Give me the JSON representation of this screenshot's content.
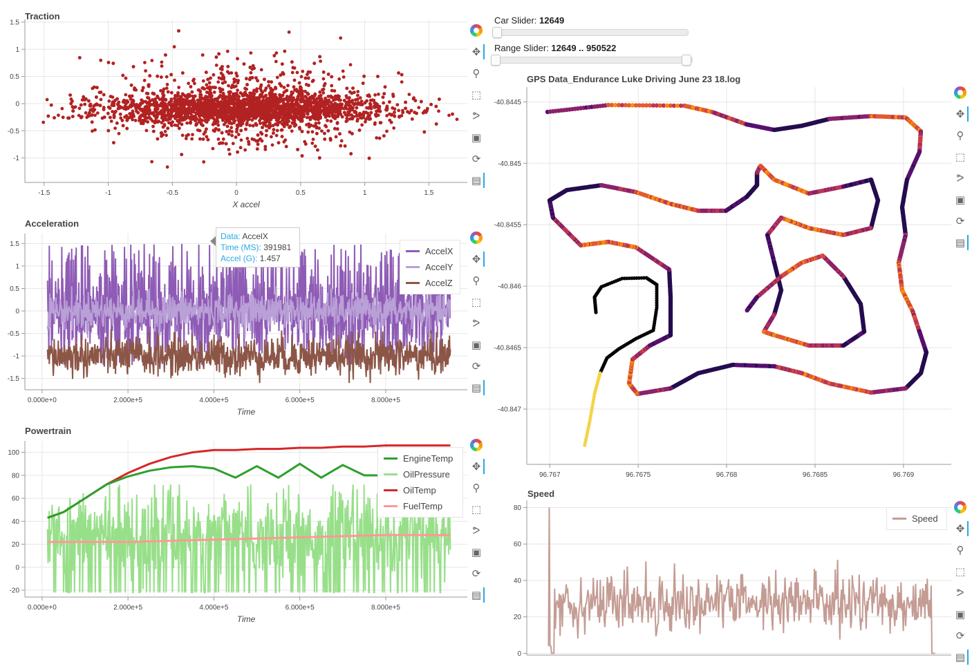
{
  "charts": {
    "traction": {
      "title": "Traction"
    },
    "accel": {
      "title": "Acceleration"
    },
    "power": {
      "title": "Powertrain"
    },
    "gps": {
      "title": "GPS Data_Endurance Luke Driving June 23 18.log"
    },
    "speed": {
      "title": "Speed"
    }
  },
  "sliders": {
    "car": {
      "label": "Car Slider:",
      "value": "12649",
      "fraction": 0.0
    },
    "range": {
      "label": "Range Slider:",
      "value": "12649 .. 950522",
      "start_fraction": 0.0,
      "end_fraction": 1.0
    }
  },
  "tooltip": {
    "data_key": "Data:",
    "data_val": "AccelX",
    "time_key": "Time (MS):",
    "time_val": "391981",
    "accel_key": "Accel (G):",
    "accel_val": "1.457"
  },
  "legends": {
    "accel": [
      {
        "name": "AccelX",
        "color": "#8e5bb5"
      },
      {
        "name": "AccelY",
        "color": "#b9a0d6"
      },
      {
        "name": "AccelZ",
        "color": "#8c5647"
      }
    ],
    "power": [
      {
        "name": "EngineTemp",
        "color": "#2ca02c"
      },
      {
        "name": "OilPressure",
        "color": "#98df8a"
      },
      {
        "name": "OilTemp",
        "color": "#d62728"
      },
      {
        "name": "FuelTemp",
        "color": "#ff9896"
      }
    ],
    "speed": [
      {
        "name": "Speed",
        "color": "#c49c94"
      }
    ]
  },
  "toolbar_icons": [
    "bokeh-logo-icon",
    "pan-icon",
    "wheel-zoom-icon",
    "box-select-icon",
    "lasso-select-icon",
    "save-icon",
    "reset-icon",
    "hover-icon"
  ],
  "chart_data": [
    {
      "type": "scatter",
      "title": "Traction",
      "xlabel": "X accel",
      "ylabel": "",
      "xlim": [
        -1.65,
        1.8
      ],
      "ylim": [
        -1.45,
        1.55
      ],
      "xticks": [
        "-1.5",
        "-1",
        "-0.5",
        "0",
        "0.5",
        "1",
        "1.5"
      ],
      "xtick_values": [
        -1.5,
        -1,
        -0.5,
        0,
        0.5,
        1,
        1.5
      ],
      "yticks": [
        "1.5",
        "1",
        "0.5",
        "0",
        "-0.5",
        "-1"
      ],
      "ytick_values": [
        1.5,
        1,
        0.5,
        0,
        -0.5,
        -1
      ],
      "color": "#b22222",
      "series": [
        {
          "name": "",
          "x_range": [
            -1.55,
            1.75
          ],
          "y_range": [
            -1.35,
            1.4
          ]
        }
      ]
    },
    {
      "type": "line",
      "title": "Acceleration",
      "xlabel": "Time",
      "ylabel": "",
      "xlim": [
        -40000,
        990000
      ],
      "ylim": [
        -1.75,
        1.72
      ],
      "xticks": [
        "0.000e+0",
        "2.000e+5",
        "4.000e+5",
        "6.000e+5",
        "8.000e+5"
      ],
      "xtick_values": [
        0,
        200000,
        400000,
        600000,
        800000
      ],
      "yticks": [
        "1.5",
        "1",
        "0.5",
        "0",
        "-0.5",
        "-1",
        "-1.5"
      ],
      "ytick_values": [
        1.5,
        1,
        0.5,
        0,
        -0.5,
        -1,
        -1.5
      ],
      "series": [
        {
          "name": "AccelX",
          "color": "#8e5bb5",
          "x_range": [
            12649,
            950522
          ],
          "mean": 0.0,
          "min": -1.45,
          "max": 1.6
        },
        {
          "name": "AccelY",
          "color": "#b9a0d6",
          "x_range": [
            12649,
            950522
          ],
          "mean": 0.0,
          "min": -0.6,
          "max": 0.55
        },
        {
          "name": "AccelZ",
          "color": "#8c5647",
          "x_range": [
            12649,
            950522
          ],
          "mean": -1.0,
          "min": -1.6,
          "max": -0.4
        }
      ]
    },
    {
      "type": "line",
      "title": "Powertrain",
      "xlabel": "Time",
      "ylabel": "",
      "xlim": [
        -40000,
        990000
      ],
      "ylim": [
        -26,
        110
      ],
      "xticks": [
        "0.000e+0",
        "2.000e+5",
        "4.000e+5",
        "6.000e+5",
        "8.000e+5"
      ],
      "xtick_values": [
        0,
        200000,
        400000,
        600000,
        800000
      ],
      "yticks": [
        "100",
        "80",
        "60",
        "40",
        "20",
        "0",
        "-20"
      ],
      "ytick_values": [
        100,
        80,
        60,
        40,
        20,
        0,
        -20
      ],
      "series": [
        {
          "name": "EngineTemp",
          "color": "#2ca02c",
          "x": [
            12649,
            50000,
            100000,
            150000,
            200000,
            250000,
            300000,
            350000,
            400000,
            450000,
            500000,
            550000,
            600000,
            650000,
            700000,
            750000,
            800000,
            850000
          ],
          "y": [
            43,
            48,
            60,
            72,
            79,
            84,
            87,
            88,
            86,
            78,
            88,
            78,
            90,
            78,
            89,
            80,
            80,
            80
          ]
        },
        {
          "name": "OilPressure",
          "color": "#98df8a",
          "x_range": [
            12649,
            950522
          ],
          "min": -25,
          "max": 72
        },
        {
          "name": "OilTemp",
          "color": "#d62728",
          "x": [
            12649,
            50000,
            100000,
            150000,
            200000,
            250000,
            300000,
            350000,
            400000,
            450000,
            500000,
            550000,
            600000,
            650000,
            700000,
            750000,
            800000,
            850000,
            950522
          ],
          "y": [
            43,
            48,
            60,
            72,
            82,
            90,
            96,
            100,
            102,
            102,
            103,
            103,
            104,
            104,
            105,
            105,
            106,
            106,
            106
          ]
        },
        {
          "name": "FuelTemp",
          "color": "#ff9896",
          "x": [
            12649,
            200000,
            400000,
            600000,
            800000,
            950522
          ],
          "y": [
            22,
            22,
            24,
            26,
            28,
            28
          ]
        }
      ]
    },
    {
      "type": "scatter",
      "title": "GPS Data_Endurance Luke Driving June 23 18.log",
      "xlabel": "",
      "ylabel": "",
      "xlim": [
        96.76687,
        96.76927
      ],
      "ylim": [
        -40.84745,
        -40.84438
      ],
      "xticks": [
        "96.767",
        "96.7675",
        "96.768",
        "96.7685",
        "96.769"
      ],
      "xtick_values": [
        96.767,
        96.7675,
        96.768,
        96.7685,
        96.769
      ],
      "yticks": [
        "-40.8445",
        "-40.845",
        "-40.8455",
        "-40.846",
        "-40.8465",
        "-40.847"
      ],
      "ytick_values": [
        -40.8445,
        -40.845,
        -40.8455,
        -40.846,
        -40.8465,
        -40.847
      ],
      "color_map": "inferno (by speed)"
    },
    {
      "type": "line",
      "title": "Speed",
      "xlabel": "",
      "ylabel": "",
      "xlim": [
        -40000,
        990000
      ],
      "ylim": [
        -1,
        84
      ],
      "yticks": [
        "80",
        "60",
        "40",
        "20",
        "0"
      ],
      "ytick_values": [
        80,
        60,
        40,
        20,
        0
      ],
      "series": [
        {
          "name": "Speed",
          "color": "#c49c94",
          "x_range": [
            12649,
            950522
          ],
          "mean": 28,
          "min": 0,
          "max": 80
        }
      ]
    }
  ]
}
